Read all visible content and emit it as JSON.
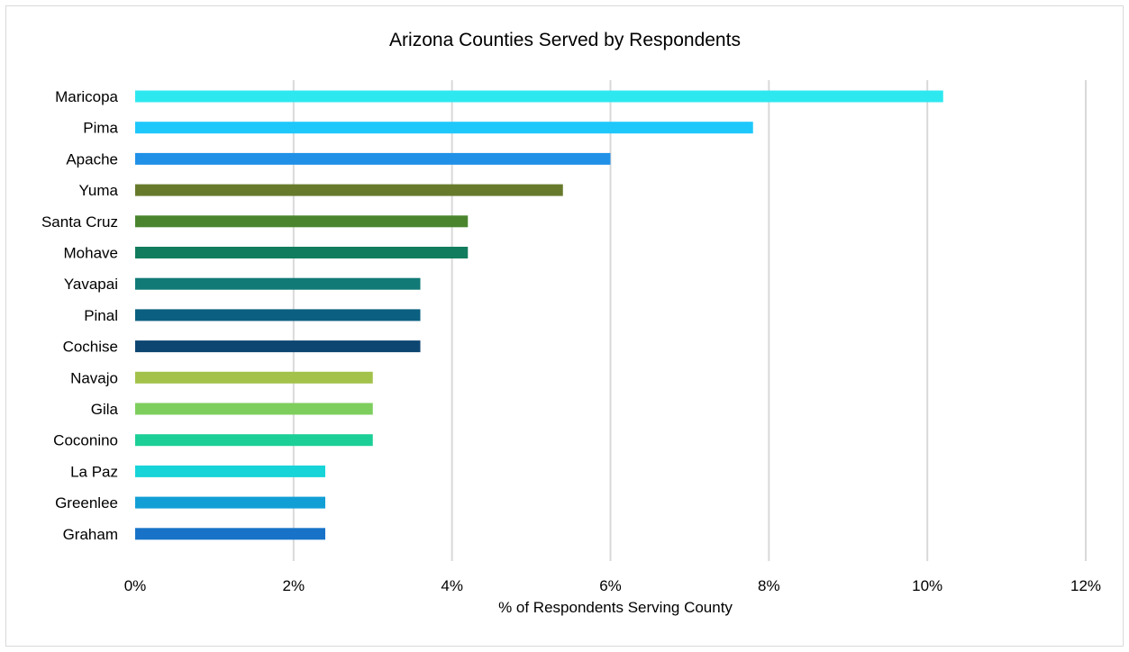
{
  "chart_data": {
    "type": "bar",
    "orientation": "horizontal",
    "title": "Arizona Counties Served by Respondents",
    "xlabel": "% of Respondents Serving County",
    "ylabel": "",
    "xlim": [
      0,
      12
    ],
    "x_ticks": [
      0,
      2,
      4,
      6,
      8,
      10,
      12
    ],
    "x_tick_labels": [
      "0%",
      "2%",
      "4%",
      "6%",
      "8%",
      "10%",
      "12%"
    ],
    "grid": true,
    "legend": "none",
    "categories": [
      "Maricopa",
      "Pima",
      "Apache",
      "Yuma",
      "Santa Cruz",
      "Mohave",
      "Yavapai",
      "Pinal",
      "Cochise",
      "Navajo",
      "Gila",
      "Coconino",
      "La Paz",
      "Greenlee",
      "Graham"
    ],
    "values": [
      10.2,
      7.8,
      6.0,
      5.4,
      4.2,
      4.2,
      3.6,
      3.6,
      3.6,
      3.0,
      3.0,
      3.0,
      2.4,
      2.4,
      2.4
    ],
    "colors": [
      "#2ee8f0",
      "#1ec8fa",
      "#2191e8",
      "#677a2c",
      "#4a852e",
      "#127c5e",
      "#117a76",
      "#0b5f80",
      "#0e4672",
      "#a3c24a",
      "#7ece5e",
      "#1ccf97",
      "#17d4d8",
      "#129fd6",
      "#1873c8"
    ]
  }
}
